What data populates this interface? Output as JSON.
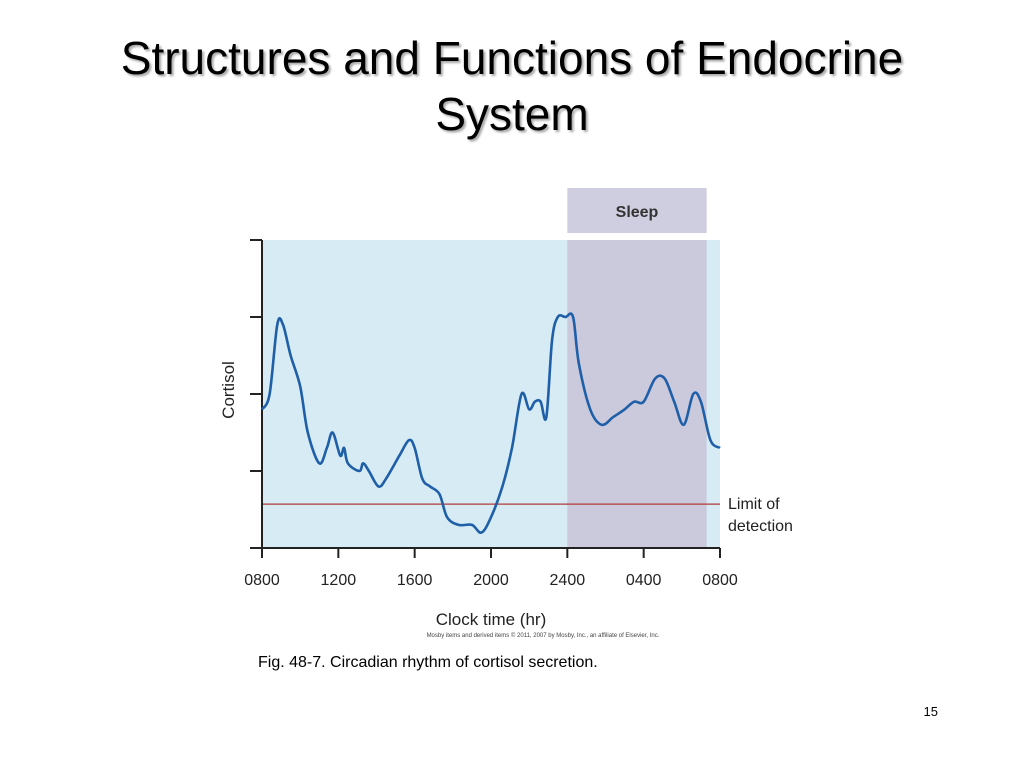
{
  "slide": {
    "title": "Structures and Functions of Endocrine System",
    "caption": "Fig. 48-7. Circadian rhythm of cortisol secretion.",
    "page_number": "15"
  },
  "chart_data": {
    "type": "line",
    "xlabel": "Clock time (hr)",
    "ylabel": "Cortisol",
    "x_tick_labels": [
      "0800",
      "1200",
      "1600",
      "2000",
      "2400",
      "0400",
      "0800"
    ],
    "x_tick_hours": [
      0,
      4,
      8,
      12,
      16,
      20,
      24
    ],
    "xlim": [
      0,
      24
    ],
    "ylim": [
      0,
      4
    ],
    "y_ticks": [
      0,
      1,
      2,
      3,
      4
    ],
    "sleep_band": {
      "label": "Sleep",
      "start_hour": 16,
      "end_hour": 23.3
    },
    "detection_limit": {
      "label_line1": "Limit of",
      "label_line2": "detection",
      "value": 0.57
    },
    "copyright": "Mosby items and derived items © 2011, 2007 by Mosby, Inc., an affiliate of Elsevier, Inc.",
    "colors": {
      "line": "#1f5fa8",
      "limit": "#b23a3a",
      "background": "#d6ebf3",
      "sleep": "#cbc9dc",
      "sleep_label_bg": "#cfcee0"
    },
    "series": [
      {
        "values": [
          [
            0,
            1.8
          ],
          [
            0.4,
            2.0
          ],
          [
            0.8,
            2.9
          ],
          [
            1.1,
            2.9
          ],
          [
            1.5,
            2.5
          ],
          [
            2.0,
            2.1
          ],
          [
            2.4,
            1.5
          ],
          [
            3.0,
            1.1
          ],
          [
            3.4,
            1.3
          ],
          [
            3.7,
            1.5
          ],
          [
            4.1,
            1.2
          ],
          [
            4.3,
            1.3
          ],
          [
            4.5,
            1.1
          ],
          [
            5.1,
            1.0
          ],
          [
            5.3,
            1.1
          ],
          [
            5.6,
            1.0
          ],
          [
            6.1,
            0.8
          ],
          [
            6.5,
            0.9
          ],
          [
            7.2,
            1.2
          ],
          [
            7.7,
            1.4
          ],
          [
            8.0,
            1.3
          ],
          [
            8.4,
            0.9
          ],
          [
            8.8,
            0.8
          ],
          [
            9.3,
            0.7
          ],
          [
            9.7,
            0.4
          ],
          [
            10.3,
            0.3
          ],
          [
            11.0,
            0.3
          ],
          [
            11.5,
            0.2
          ],
          [
            12.0,
            0.4
          ],
          [
            12.6,
            0.8
          ],
          [
            13.1,
            1.3
          ],
          [
            13.6,
            2.0
          ],
          [
            14.0,
            1.8
          ],
          [
            14.3,
            1.9
          ],
          [
            14.6,
            1.9
          ],
          [
            14.9,
            1.7
          ],
          [
            15.2,
            2.7
          ],
          [
            15.5,
            3.0
          ],
          [
            15.9,
            3.0
          ],
          [
            16.3,
            3.0
          ],
          [
            16.6,
            2.4
          ],
          [
            17.2,
            1.8
          ],
          [
            17.8,
            1.6
          ],
          [
            18.4,
            1.7
          ],
          [
            19.0,
            1.8
          ],
          [
            19.5,
            1.9
          ],
          [
            20.0,
            1.9
          ],
          [
            20.6,
            2.2
          ],
          [
            21.1,
            2.2
          ],
          [
            21.6,
            1.9
          ],
          [
            22.1,
            1.6
          ],
          [
            22.6,
            2.0
          ],
          [
            23.0,
            1.9
          ],
          [
            23.5,
            1.4
          ],
          [
            24,
            1.3
          ]
        ]
      }
    ]
  }
}
